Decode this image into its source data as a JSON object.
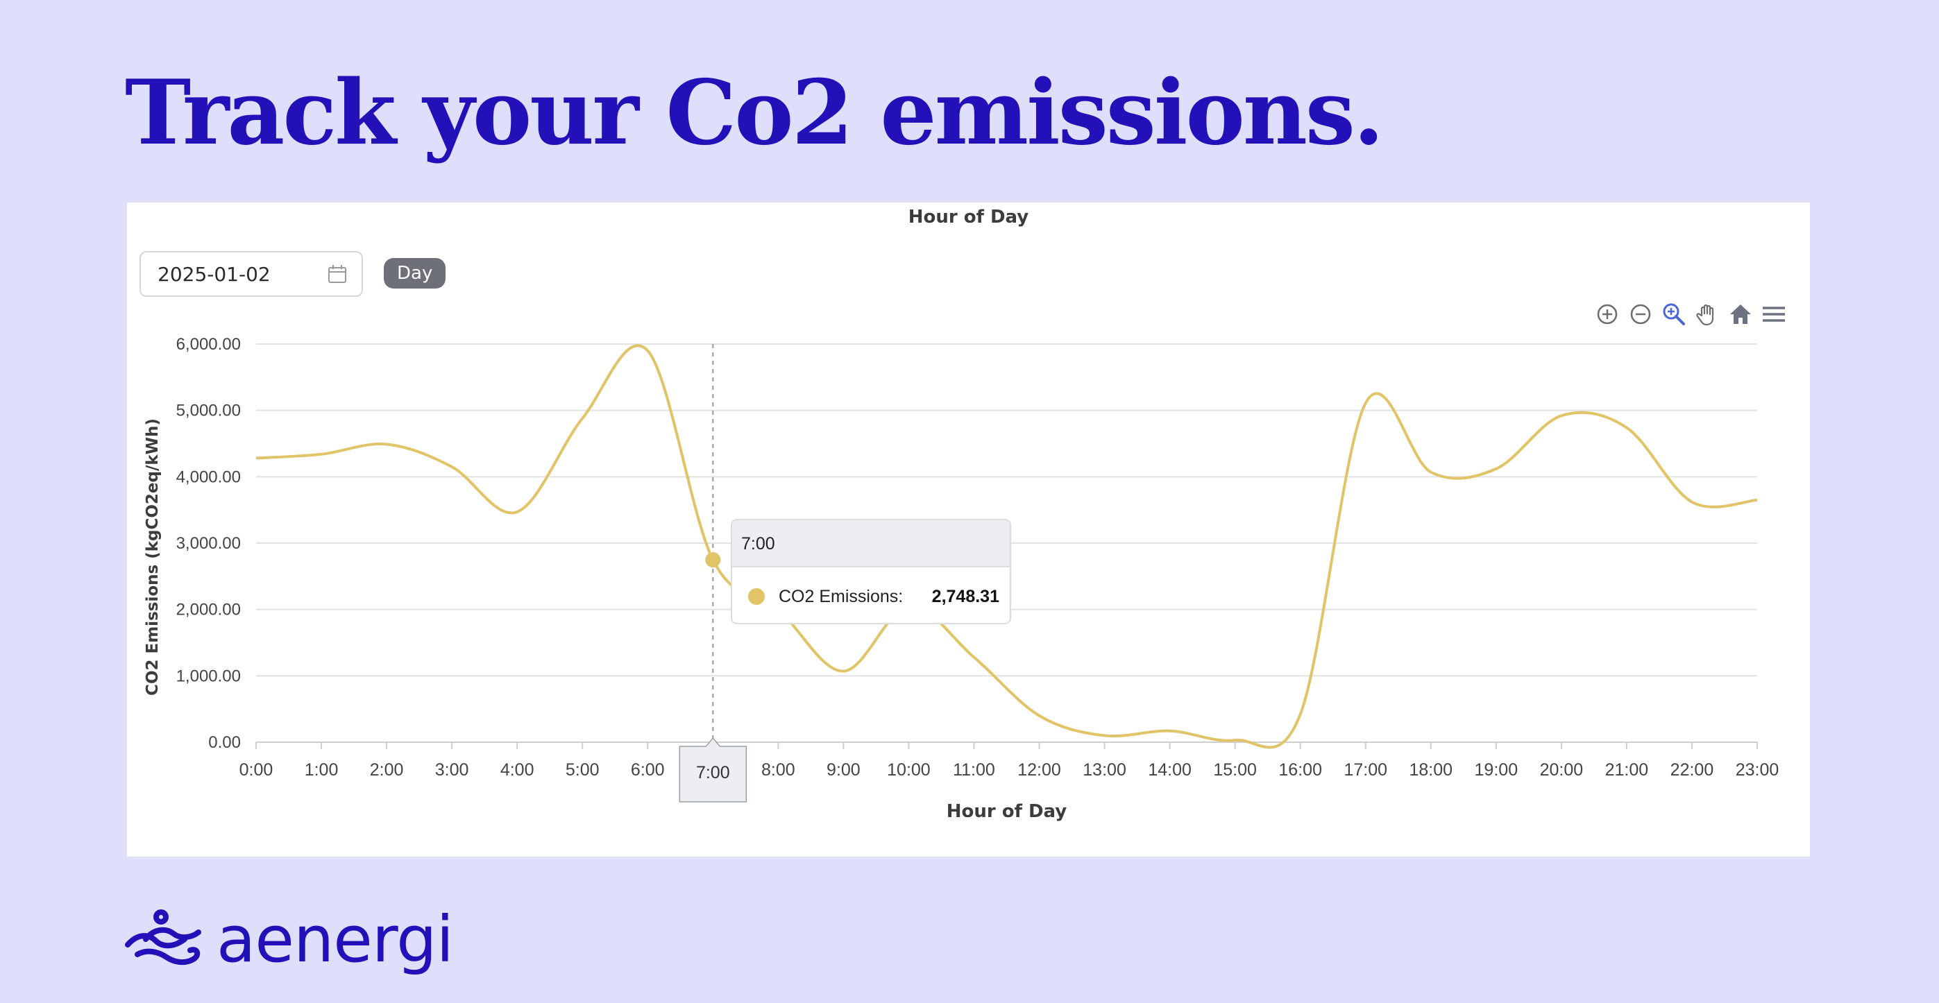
{
  "headline": "Track your Co2 emissions.",
  "brand": {
    "name": "aenergi",
    "logo_icon": "wind-wave-icon",
    "color": "#2211b8"
  },
  "controls": {
    "date_value": "2025-01-02",
    "date_icon": "calendar-icon",
    "period_label": "Day"
  },
  "toolbar": {
    "icons": [
      "zoom-in-icon",
      "zoom-out-icon",
      "zoom-select-icon",
      "pan-icon",
      "home-icon",
      "menu-icon"
    ]
  },
  "colors": {
    "page_bg": "#dfdefb",
    "series": "#e0c467",
    "accent": "#4a66d6"
  },
  "tooltip": {
    "title": "7:00",
    "series_label": "CO2 Emissions:",
    "value": "2,748.31",
    "x_badge": "7:00"
  },
  "chart_data": {
    "type": "line",
    "curve": "smooth",
    "title": "Hour of Day",
    "xlabel": "Hour of Day",
    "ylabel": "CO2 Emissions (kgCO2eq/kWh)",
    "x": [
      "0:00",
      "1:00",
      "2:00",
      "3:00",
      "4:00",
      "5:00",
      "6:00",
      "7:00",
      "8:00",
      "9:00",
      "10:00",
      "11:00",
      "12:00",
      "13:00",
      "14:00",
      "15:00",
      "16:00",
      "17:00",
      "18:00",
      "19:00",
      "20:00",
      "21:00",
      "22:00",
      "23:00"
    ],
    "yticks": [
      "0.00",
      "1,000.00",
      "2,000.00",
      "3,000.00",
      "4,000.00",
      "5,000.00",
      "6,000.00"
    ],
    "ylim": [
      0,
      6000
    ],
    "grid": true,
    "legend": "none",
    "series": [
      {
        "name": "CO2 Emissions",
        "color": "#e0c467",
        "values": [
          4280,
          4340,
          4490,
          4150,
          3470,
          4880,
          5900,
          2748.31,
          2000,
          1070,
          2050,
          1280,
          400,
          100,
          170,
          30,
          420,
          5110,
          4070,
          4120,
          4920,
          4740,
          3620,
          3650
        ]
      }
    ],
    "highlight_index": 7
  }
}
